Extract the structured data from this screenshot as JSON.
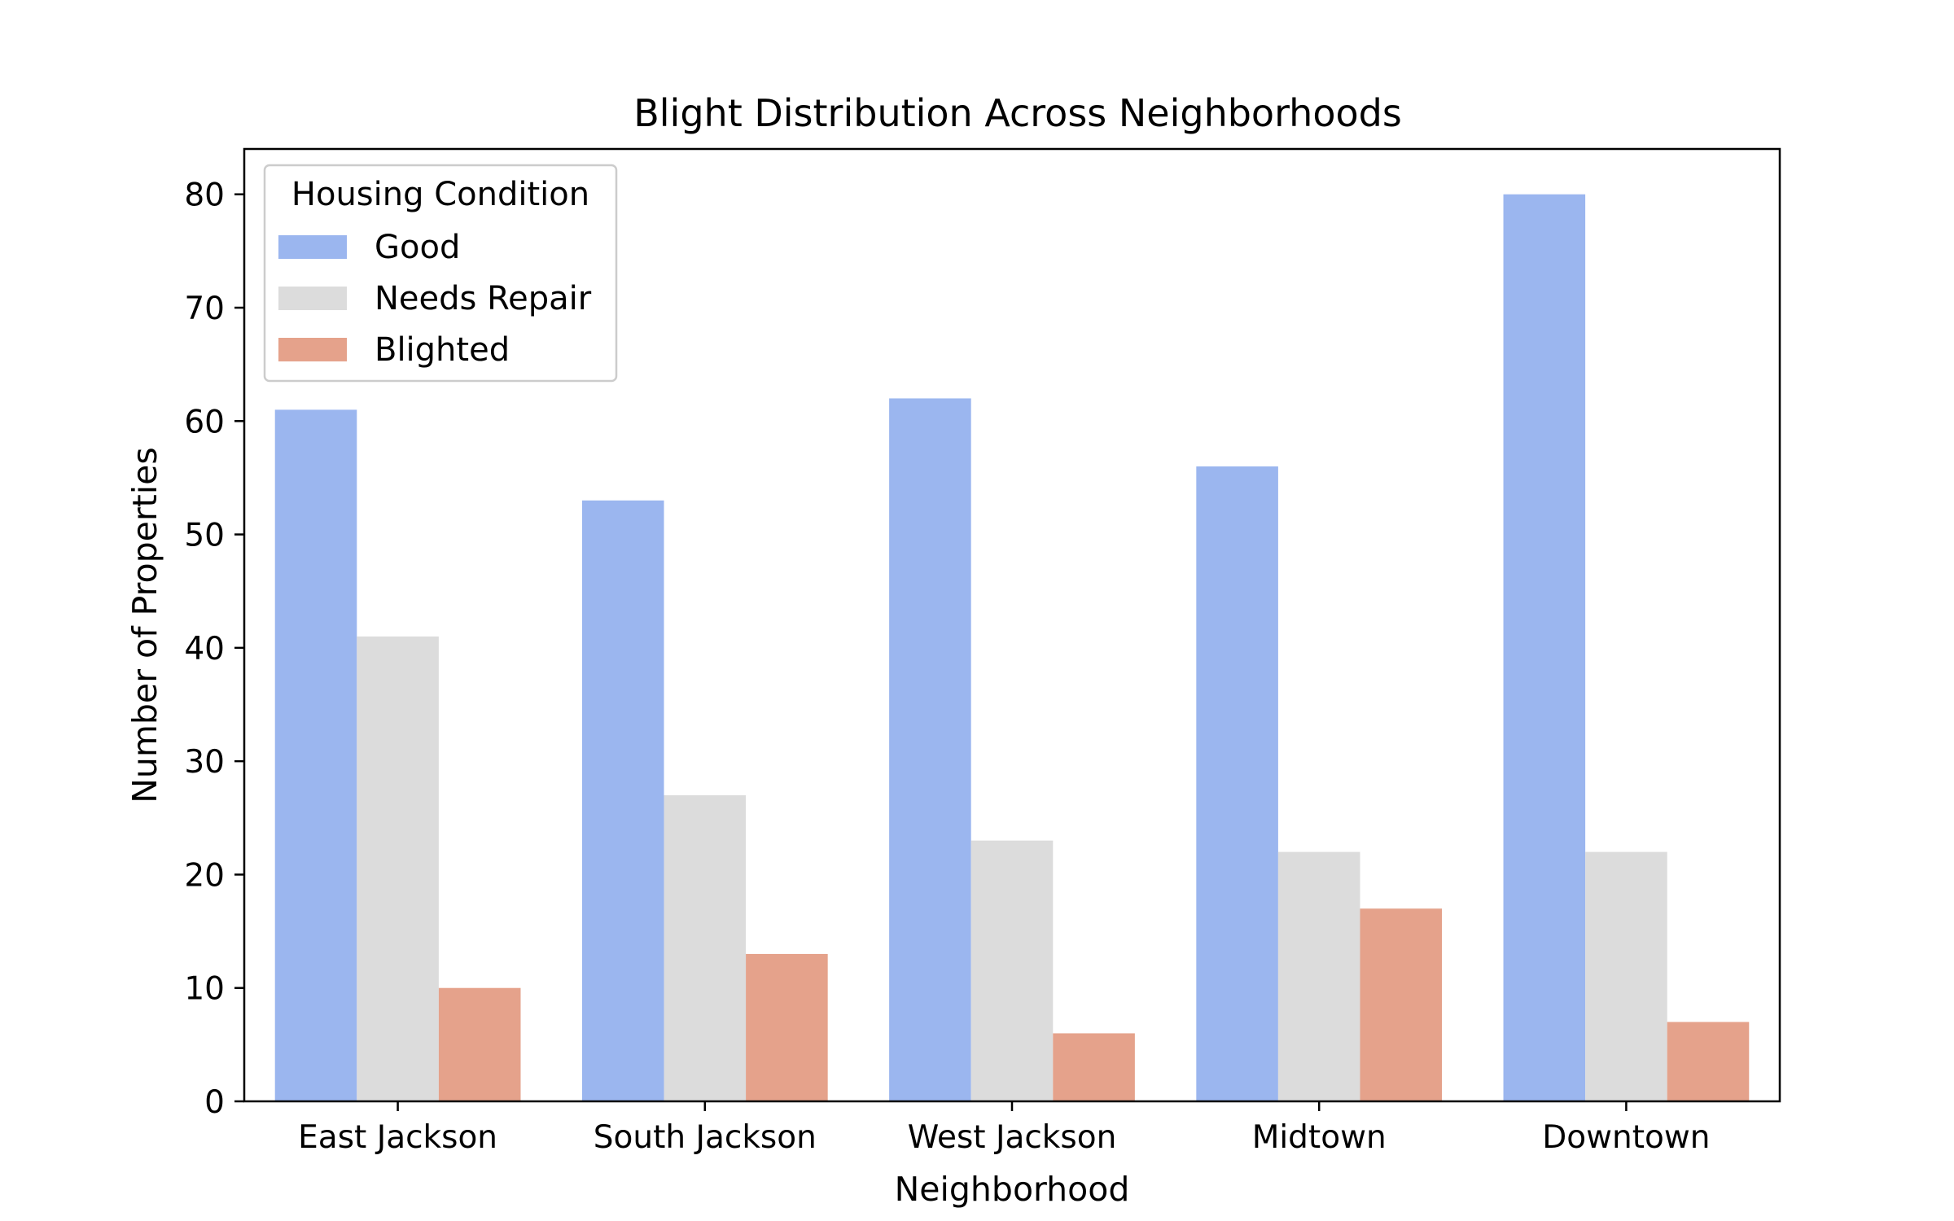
{
  "chart_data": {
    "type": "bar",
    "title": "Blight Distribution Across Neighborhoods",
    "xlabel": "Neighborhood",
    "ylabel": "Number of Properties",
    "categories": [
      "East Jackson",
      "South Jackson",
      "West Jackson",
      "Midtown",
      "Downtown"
    ],
    "series": [
      {
        "name": "Good",
        "values": [
          61,
          53,
          62,
          56,
          80
        ],
        "color": "#9bb6ef"
      },
      {
        "name": "Needs Repair",
        "values": [
          41,
          27,
          23,
          22,
          22
        ],
        "color": "#dcdcdc"
      },
      {
        "name": "Blighted",
        "values": [
          10,
          13,
          6,
          17,
          7
        ],
        "color": "#e5a28b"
      }
    ],
    "ylim": [
      0,
      84
    ],
    "yticks": [
      0,
      10,
      20,
      30,
      40,
      50,
      60,
      70,
      80
    ],
    "grid": false,
    "legend": {
      "title": "Housing Condition",
      "placement": "top-left"
    }
  }
}
